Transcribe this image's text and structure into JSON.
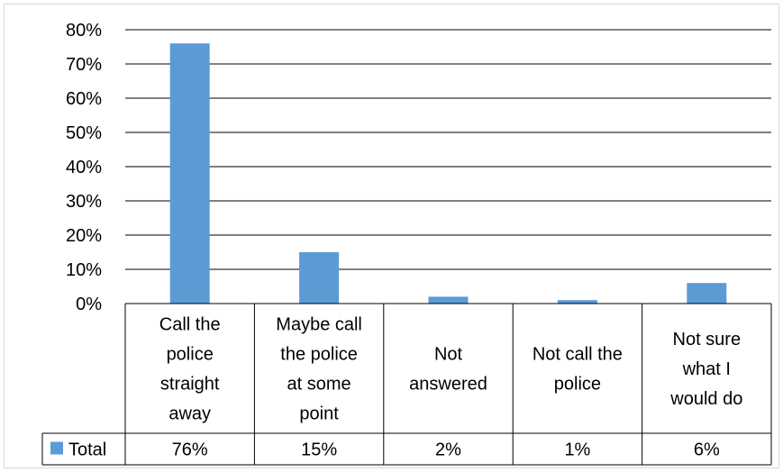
{
  "chart_data": {
    "type": "bar",
    "categories": [
      [
        "Call the",
        "police",
        "straight",
        "away"
      ],
      [
        "Maybe call",
        "the police",
        "at some",
        "point"
      ],
      [
        "Not",
        "answered"
      ],
      [
        "Not call the",
        "police"
      ],
      [
        "Not sure",
        "what I",
        "would do"
      ]
    ],
    "series": [
      {
        "name": "Total",
        "values": [
          76,
          15,
          2,
          1,
          6
        ],
        "labels": [
          "76%",
          "15%",
          "2%",
          "1%",
          "6%"
        ],
        "color": "#5b9bd5"
      }
    ],
    "ylim": [
      0,
      80
    ],
    "yticks": [
      0,
      10,
      20,
      30,
      40,
      50,
      60,
      70,
      80
    ],
    "ytick_labels": [
      "0%",
      "10%",
      "20%",
      "30%",
      "40%",
      "50%",
      "60%",
      "70%",
      "80%"
    ],
    "grid": true,
    "legend_placement": "data-table",
    "title": "",
    "xlabel": "",
    "ylabel": ""
  }
}
